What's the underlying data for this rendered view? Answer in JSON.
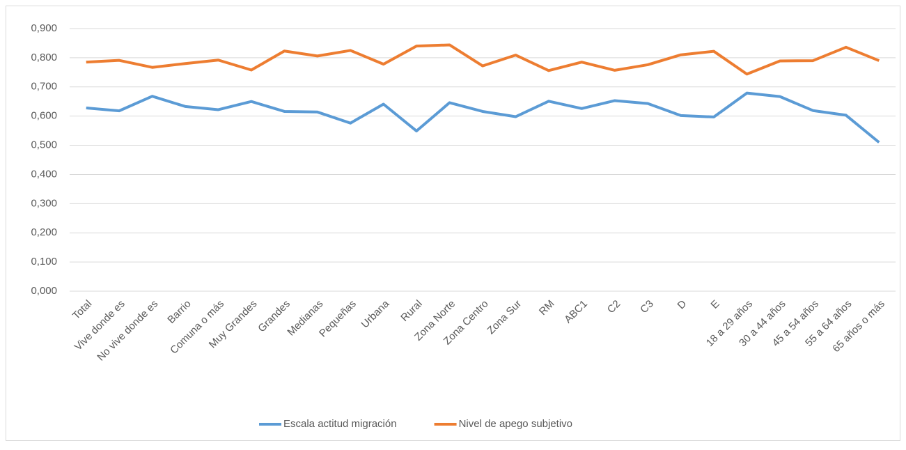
{
  "chart_data": {
    "type": "line",
    "categories": [
      "Total",
      "Vive donde es",
      "No vive donde es",
      "Barrio",
      "Comuna o más",
      "Muy Grandes",
      "Grandes",
      "Medianas",
      "Pequeñas",
      "Urbana",
      "Rural",
      "Zona Norte",
      "Zona Centro",
      "Zona Sur",
      "RM",
      "ABC1",
      "C2",
      "C3",
      "D",
      "E",
      "18 a 29 años",
      "30 a 44 años",
      "45 a 54 años",
      "55 a 64 años",
      "65 años o más"
    ],
    "series": [
      {
        "name": "Escala actitud migración",
        "color": "#5b9bd5",
        "values": [
          0.628,
          0.618,
          0.668,
          0.633,
          0.622,
          0.65,
          0.616,
          0.614,
          0.576,
          0.641,
          0.549,
          0.646,
          0.616,
          0.598,
          0.651,
          0.626,
          0.653,
          0.643,
          0.602,
          0.597,
          0.679,
          0.667,
          0.619,
          0.603,
          0.51
        ]
      },
      {
        "name": "Nivel de apego subjetivo",
        "color": "#ed7d31",
        "values": [
          0.785,
          0.791,
          0.767,
          0.78,
          0.792,
          0.758,
          0.823,
          0.806,
          0.825,
          0.778,
          0.84,
          0.844,
          0.772,
          0.809,
          0.756,
          0.785,
          0.757,
          0.776,
          0.81,
          0.822,
          0.744,
          0.789,
          0.79,
          0.836,
          0.79
        ]
      }
    ],
    "ylim": [
      0,
      0.9
    ],
    "yticks": [
      {
        "value": 0,
        "label": "0,000"
      },
      {
        "value": 0.1,
        "label": "0,100"
      },
      {
        "value": 0.2,
        "label": "0,200"
      },
      {
        "value": 0.3,
        "label": "0,300"
      },
      {
        "value": 0.4,
        "label": "0,400"
      },
      {
        "value": 0.5,
        "label": "0,500"
      },
      {
        "value": 0.6,
        "label": "0,600"
      },
      {
        "value": 0.7,
        "label": "0,700"
      },
      {
        "value": 0.8,
        "label": "0,800"
      },
      {
        "value": 0.9,
        "label": "0,900"
      }
    ],
    "grid": true,
    "legend": "bottom"
  }
}
